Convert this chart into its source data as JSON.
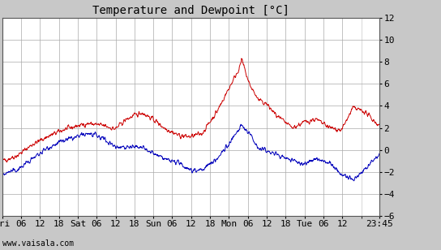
{
  "title": "Temperature and Dewpoint [°C]",
  "bg_color": "#c8c8c8",
  "plot_bg_color": "#ffffff",
  "temp_color": "#cc0000",
  "dewp_color": "#0000bb",
  "ylim": [
    -6,
    12
  ],
  "yticks": [
    -6,
    -4,
    -2,
    0,
    2,
    4,
    6,
    8,
    10,
    12
  ],
  "watermark": "www.vaisala.com",
  "line_width": 0.7,
  "title_fontsize": 10,
  "tick_fontsize": 8,
  "watermark_fontsize": 7
}
